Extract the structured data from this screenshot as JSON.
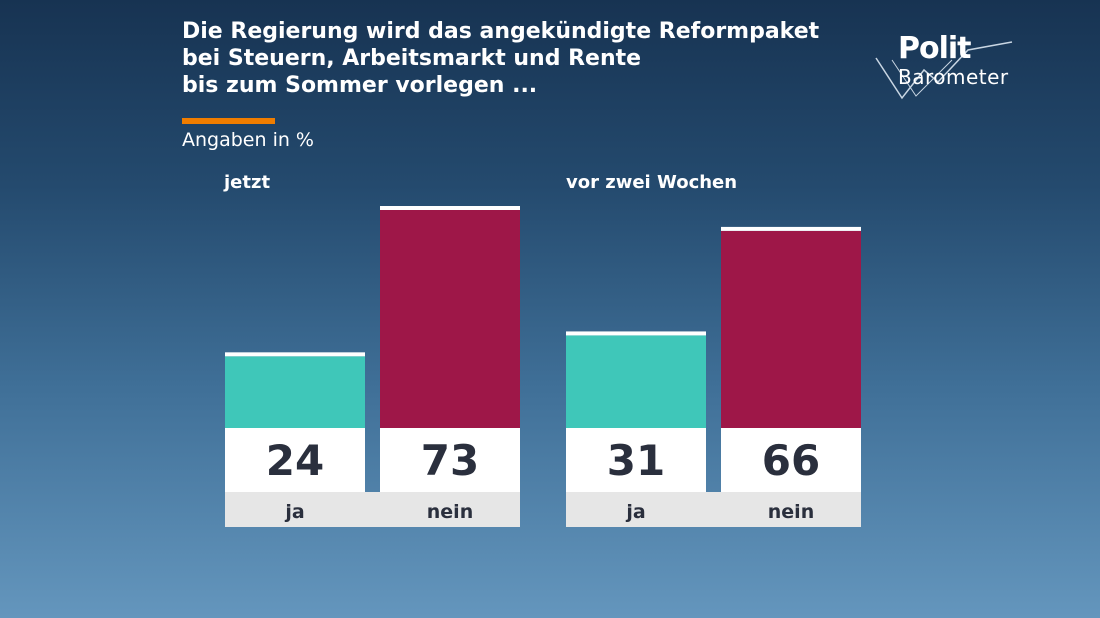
{
  "chart_data": {
    "type": "bar",
    "title_lines": [
      "Die Regierung wird das angekündigte Reformpaket",
      "bei Steuern, Arbeitsmarkt und Rente",
      "bis zum Sommer vorlegen ..."
    ],
    "subtitle": "Angaben in %",
    "ylim": [
      0,
      73
    ],
    "groups": [
      {
        "label": "jetzt",
        "bars": [
          {
            "category": "ja",
            "value": 24,
            "color": "#3fc7b9"
          },
          {
            "category": "nein",
            "value": 73,
            "color": "#9e1748"
          }
        ]
      },
      {
        "label": "vor zwei Wochen",
        "bars": [
          {
            "category": "ja",
            "value": 31,
            "color": "#3fc7b9"
          },
          {
            "category": "nein",
            "value": 66,
            "color": "#9e1748"
          }
        ]
      }
    ]
  },
  "logo": {
    "line1": "Polit",
    "line2": "Barometer"
  }
}
